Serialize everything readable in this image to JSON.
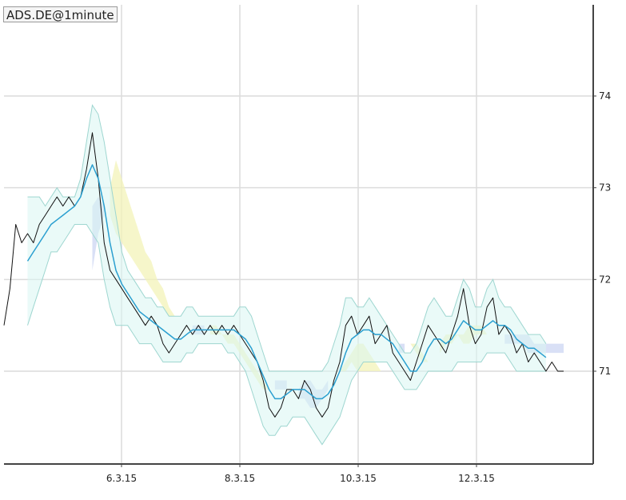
{
  "title": "ADS.DE@1minute",
  "colors": {
    "background": "#ffffff",
    "grid": "#dcdcdc",
    "axis": "#444444",
    "price": "#111111",
    "ma": "#2a9fd0",
    "band_fill": "#d9f5f3",
    "band_edge": "#9ed6d0",
    "cloud_up": "#f3f3b8",
    "cloud_down": "#c9d3f2"
  },
  "chart_data": {
    "type": "line",
    "title": "ADS.DE@1minute",
    "xlabel": "",
    "ylabel": "",
    "x_ticks": [
      "6.3.15",
      "8.3.15",
      "10.3.15",
      "12.3.15"
    ],
    "y_ticks": [
      71,
      72,
      73,
      74
    ],
    "xlim": [
      0,
      100
    ],
    "ylim": [
      70.0,
      75.0
    ],
    "grid": true,
    "x": [
      0,
      1,
      2,
      3,
      4,
      5,
      6,
      7,
      8,
      9,
      10,
      11,
      12,
      13,
      14,
      15,
      16,
      17,
      18,
      19,
      20,
      21,
      22,
      23,
      24,
      25,
      26,
      27,
      28,
      29,
      30,
      31,
      32,
      33,
      34,
      35,
      36,
      37,
      38,
      39,
      40,
      41,
      42,
      43,
      44,
      45,
      46,
      47,
      48,
      49,
      50,
      51,
      52,
      53,
      54,
      55,
      56,
      57,
      58,
      59,
      60,
      61,
      62,
      63,
      64,
      65,
      66,
      67,
      68,
      69,
      70,
      71,
      72,
      73,
      74,
      75,
      76,
      77,
      78,
      79,
      80,
      81,
      82,
      83,
      84,
      85,
      86,
      87,
      88,
      89,
      90,
      91,
      92,
      93,
      94,
      95
    ],
    "series": [
      {
        "name": "",
        "role": "price",
        "values": [
          71.5,
          71.9,
          72.6,
          72.4,
          72.5,
          72.4,
          72.6,
          72.7,
          72.8,
          72.9,
          72.8,
          72.9,
          72.8,
          72.9,
          73.2,
          73.6,
          73.1,
          72.4,
          72.1,
          72.0,
          71.9,
          71.8,
          71.7,
          71.6,
          71.5,
          71.6,
          71.5,
          71.3,
          71.2,
          71.3,
          71.4,
          71.5,
          71.4,
          71.5,
          71.4,
          71.5,
          71.4,
          71.5,
          71.4,
          71.5,
          71.4,
          71.3,
          71.2,
          71.1,
          70.9,
          70.6,
          70.5,
          70.6,
          70.8,
          70.8,
          70.7,
          70.9,
          70.8,
          70.6,
          70.5,
          70.6,
          70.9,
          71.1,
          71.5,
          71.6,
          71.4,
          71.5,
          71.6,
          71.3,
          71.4,
          71.5,
          71.2,
          71.1,
          71.0,
          70.9,
          71.1,
          71.3,
          71.5,
          71.4,
          71.3,
          71.2,
          71.4,
          71.6,
          71.9,
          71.5,
          71.3,
          71.4,
          71.7,
          71.8,
          71.4,
          71.5,
          71.4,
          71.2,
          71.3,
          71.1,
          71.2,
          71.1,
          71.0,
          71.1,
          71.0,
          71.0
        ]
      },
      {
        "name": "",
        "role": "moving-average",
        "values": [
          null,
          null,
          null,
          null,
          72.2,
          72.3,
          72.4,
          72.5,
          72.6,
          72.65,
          72.7,
          72.75,
          72.8,
          72.9,
          73.1,
          73.25,
          73.1,
          72.8,
          72.4,
          72.1,
          71.95,
          71.85,
          71.75,
          71.65,
          71.6,
          71.55,
          71.5,
          71.45,
          71.4,
          71.35,
          71.35,
          71.4,
          71.45,
          71.45,
          71.45,
          71.45,
          71.45,
          71.45,
          71.45,
          71.45,
          71.4,
          71.35,
          71.25,
          71.1,
          70.95,
          70.8,
          70.7,
          70.7,
          70.75,
          70.8,
          70.8,
          70.8,
          70.75,
          70.7,
          70.7,
          70.75,
          70.85,
          71.0,
          71.2,
          71.35,
          71.4,
          71.45,
          71.45,
          71.4,
          71.4,
          71.35,
          71.3,
          71.2,
          71.1,
          71.0,
          71.0,
          71.1,
          71.25,
          71.35,
          71.35,
          71.3,
          71.35,
          71.45,
          71.55,
          71.5,
          71.45,
          71.45,
          71.5,
          71.55,
          71.5,
          71.5,
          71.45,
          71.35,
          71.3,
          71.25,
          71.25,
          71.2,
          71.15,
          null,
          null,
          null
        ]
      }
    ],
    "band": {
      "upper": [
        null,
        null,
        null,
        null,
        72.9,
        72.9,
        72.9,
        72.8,
        72.9,
        73.0,
        72.9,
        72.9,
        72.9,
        73.1,
        73.5,
        73.9,
        73.8,
        73.5,
        73.1,
        72.7,
        72.3,
        72.1,
        72.0,
        71.9,
        71.8,
        71.8,
        71.7,
        71.7,
        71.6,
        71.6,
        71.6,
        71.7,
        71.7,
        71.6,
        71.6,
        71.6,
        71.6,
        71.6,
        71.6,
        71.6,
        71.7,
        71.7,
        71.6,
        71.4,
        71.2,
        71.0,
        71.0,
        71.0,
        71.0,
        71.0,
        71.0,
        71.0,
        71.0,
        71.0,
        71.0,
        71.1,
        71.3,
        71.5,
        71.8,
        71.8,
        71.7,
        71.7,
        71.8,
        71.7,
        71.6,
        71.5,
        71.4,
        71.3,
        71.2,
        71.2,
        71.3,
        71.5,
        71.7,
        71.8,
        71.7,
        71.6,
        71.6,
        71.8,
        72.0,
        71.9,
        71.7,
        71.7,
        71.9,
        72.0,
        71.8,
        71.7,
        71.7,
        71.6,
        71.5,
        71.4,
        71.4,
        71.4,
        71.3,
        null,
        null,
        null
      ],
      "lower": [
        null,
        null,
        null,
        null,
        71.5,
        71.7,
        71.9,
        72.1,
        72.3,
        72.3,
        72.4,
        72.5,
        72.6,
        72.6,
        72.6,
        72.5,
        72.4,
        72.0,
        71.7,
        71.5,
        71.5,
        71.5,
        71.4,
        71.3,
        71.3,
        71.3,
        71.2,
        71.1,
        71.1,
        71.1,
        71.1,
        71.2,
        71.2,
        71.3,
        71.3,
        71.3,
        71.3,
        71.3,
        71.2,
        71.2,
        71.1,
        71.0,
        70.8,
        70.6,
        70.4,
        70.3,
        70.3,
        70.4,
        70.4,
        70.5,
        70.5,
        70.5,
        70.4,
        70.3,
        70.2,
        70.3,
        70.4,
        70.5,
        70.7,
        70.9,
        71.0,
        71.1,
        71.1,
        71.1,
        71.1,
        71.1,
        71.0,
        70.9,
        70.8,
        70.8,
        70.8,
        70.9,
        71.0,
        71.0,
        71.0,
        71.0,
        71.0,
        71.1,
        71.1,
        71.1,
        71.1,
        71.1,
        71.2,
        71.2,
        71.2,
        71.2,
        71.1,
        71.0,
        71.0,
        71.0,
        71.0,
        71.0,
        71.0,
        null,
        null,
        null
      ]
    },
    "cloud": {
      "a": [
        null,
        null,
        null,
        null,
        null,
        null,
        null,
        null,
        null,
        null,
        null,
        null,
        null,
        null,
        null,
        72.1,
        72.5,
        72.7,
        73.0,
        73.3,
        73.1,
        72.9,
        72.7,
        72.5,
        72.3,
        72.2,
        72.0,
        71.9,
        71.7,
        71.6,
        71.5,
        71.5,
        71.4,
        71.4,
        71.4,
        71.5,
        71.5,
        71.4,
        71.4,
        71.4,
        71.3,
        71.2,
        71.1,
        71.0,
        70.9,
        70.8,
        70.8,
        70.8,
        70.8,
        70.8,
        70.7,
        70.7,
        70.6,
        70.6,
        70.7,
        70.8,
        70.9,
        71.0,
        71.1,
        71.2,
        71.3,
        71.3,
        71.2,
        71.1,
        71.0,
        71.1,
        71.2,
        71.2,
        71.2,
        71.3,
        71.3,
        71.2,
        71.1,
        71.1,
        71.3,
        71.4,
        71.4,
        71.4,
        71.4,
        71.5,
        71.5,
        71.5,
        71.4,
        71.4,
        71.4,
        71.3,
        71.3,
        71.3,
        71.3,
        71.2,
        71.2,
        71.2,
        71.2,
        71.2,
        71.2,
        71.2
      ],
      "b": [
        null,
        null,
        null,
        null,
        null,
        null,
        null,
        null,
        null,
        null,
        null,
        null,
        null,
        null,
        null,
        72.8,
        72.9,
        72.8,
        72.7,
        72.5,
        72.4,
        72.3,
        72.2,
        72.1,
        72.0,
        71.9,
        71.8,
        71.7,
        71.6,
        71.6,
        71.5,
        71.5,
        71.5,
        71.5,
        71.5,
        71.4,
        71.4,
        71.4,
        71.3,
        71.3,
        71.2,
        71.1,
        71.0,
        70.9,
        70.8,
        70.8,
        70.9,
        70.9,
        70.9,
        70.8,
        70.8,
        70.9,
        70.9,
        70.8,
        70.8,
        70.9,
        70.9,
        71.0,
        71.0,
        71.1,
        71.0,
        71.0,
        71.0,
        71.0,
        71.0,
        71.1,
        71.2,
        71.3,
        71.3,
        71.3,
        71.2,
        71.1,
        71.1,
        71.2,
        71.2,
        71.3,
        71.3,
        71.4,
        71.3,
        71.3,
        71.4,
        71.4,
        71.4,
        71.4,
        71.4,
        71.4,
        71.4,
        71.4,
        71.4,
        71.4,
        71.3,
        71.3,
        71.3,
        71.3,
        71.3,
        71.3
      ]
    }
  }
}
